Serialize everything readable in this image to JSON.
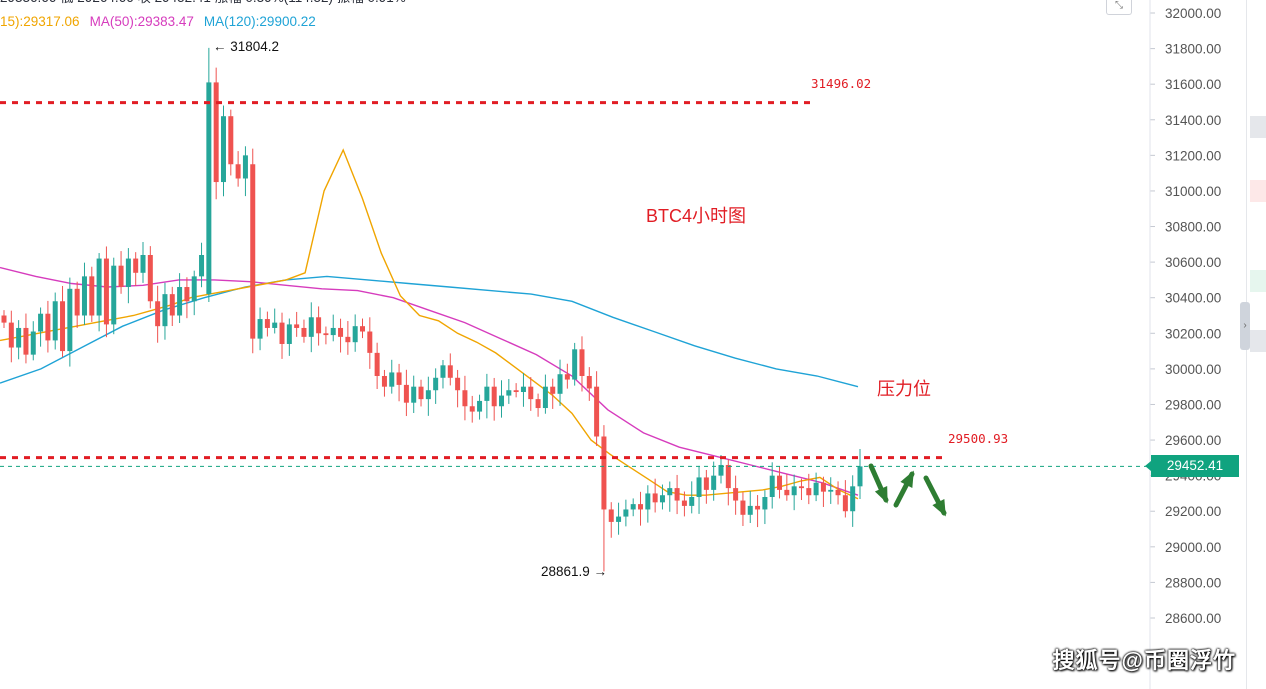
{
  "header": {
    "ohlc_partial": "29336.66  低 29264.66  收 29452.41  涨幅 0.39%(114.52)  振幅 0.91%",
    "ma15": "15):29317.06",
    "ma50": "MA(50):29383.47",
    "ma120": "MA(120):29900.22"
  },
  "colors": {
    "up": "#26a69a",
    "down": "#ef5350",
    "ma15": "#f0a500",
    "ma50": "#d63cbd",
    "ma120": "#1fa3d6",
    "level": "#e11d24",
    "current": "#10a37f",
    "arrow": "#2e7d32"
  },
  "chart_data": {
    "type": "candlestick",
    "title": "BTC4小时图",
    "y_axis": {
      "range": [
        28460,
        32060
      ],
      "ticks": [
        "32000.00",
        "31800.00",
        "31600.00",
        "31400.00",
        "31200.00",
        "31000.00",
        "30800.00",
        "30600.00",
        "30400.00",
        "30200.00",
        "30000.00",
        "29800.00",
        "29600.00",
        "29400.00",
        "29200.00",
        "29000.00",
        "28800.00",
        "28600.00"
      ]
    },
    "current_price": "29452.41",
    "levels": [
      {
        "name": "resistance-upper",
        "value": "31496.02",
        "price": 31496.02
      },
      {
        "name": "resistance",
        "value": "29500.93",
        "price": 29500.93
      }
    ],
    "annotations": {
      "resistance_label": "压力位",
      "high_label": "← 31804.2",
      "high_value": 31804.2,
      "low_label": "28861.9 →",
      "low_value": 28861.9
    },
    "closes": [
      30260,
      30120,
      30230,
      30080,
      30210,
      30310,
      30160,
      30380,
      30100,
      30450,
      30300,
      30520,
      30300,
      30620,
      30250,
      30580,
      30460,
      30620,
      30540,
      30640,
      30380,
      30240,
      30420,
      30300,
      30460,
      30380,
      30520,
      30640,
      31610,
      31050,
      31420,
      31150,
      31070,
      31200,
      30170,
      30280,
      30230,
      30260,
      30140,
      30250,
      30230,
      30180,
      30290,
      30200,
      30190,
      30230,
      30180,
      30150,
      30240,
      30210,
      30090,
      29960,
      29900,
      29980,
      29910,
      29810,
      29900,
      29830,
      29880,
      29950,
      30020,
      29950,
      29880,
      29790,
      29760,
      29820,
      29900,
      29790,
      29850,
      29880,
      29870,
      29900,
      29830,
      29780,
      29900,
      29860,
      29970,
      29940,
      30110,
      29960,
      29890,
      29620,
      29210,
      29140,
      29170,
      29210,
      29240,
      29210,
      29300,
      29250,
      29290,
      29330,
      29260,
      29230,
      29280,
      29390,
      29320,
      29400,
      29460,
      29330,
      29260,
      29180,
      29230,
      29210,
      29280,
      29400,
      29320,
      29290,
      29340,
      29330,
      29290,
      29360,
      29310,
      29320,
      29290,
      29200,
      29340,
      29452
    ],
    "ma15_series": [
      30160,
      30180,
      30200,
      30220,
      30240,
      30260,
      30280,
      30300,
      30330,
      30360,
      30400,
      30420,
      30440,
      30460,
      30480,
      30500,
      30540,
      31000,
      31230,
      30960,
      30650,
      30410,
      30300,
      30270,
      30200,
      30150,
      30090,
      30010,
      29930,
      29850,
      29750,
      29600,
      29520,
      29450,
      29380,
      29310,
      29290,
      29290,
      29300,
      29310,
      29320,
      29340,
      29370,
      29390,
      29320,
      29270
    ],
    "ma50_series": [
      30570,
      30520,
      30480,
      30460,
      30470,
      30500,
      30500,
      30490,
      30470,
      30450,
      30440,
      30400,
      30330,
      30260,
      30170,
      30080,
      29960,
      29770,
      29640,
      29560,
      29510,
      29460,
      29410,
      29360,
      29290
    ],
    "ma120_series": [
      29920,
      30000,
      30120,
      30240,
      30330,
      30400,
      30460,
      30500,
      30520,
      30500,
      30480,
      30460,
      30440,
      30420,
      30380,
      30290,
      30210,
      30130,
      30060,
      30000,
      29960,
      29900
    ]
  },
  "watermark": "搜狐号@币圈浮竹",
  "corner_button": "⤡"
}
